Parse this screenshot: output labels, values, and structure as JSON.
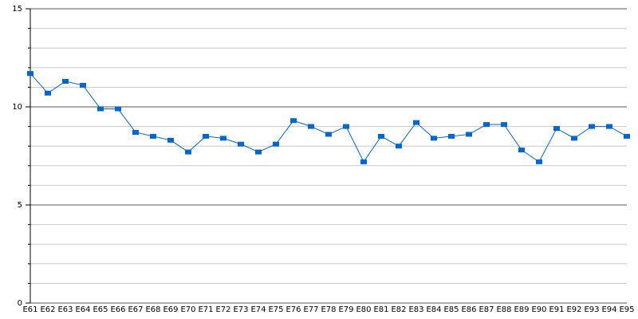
{
  "chart_data": {
    "type": "line",
    "categories": [
      "E61",
      "E62",
      "E63",
      "E64",
      "E65",
      "E66",
      "E67",
      "E68",
      "E69",
      "E70",
      "E71",
      "E72",
      "E73",
      "E74",
      "E75",
      "E76",
      "E77",
      "E78",
      "E79",
      "E80",
      "E81",
      "E82",
      "E83",
      "E84",
      "E85",
      "E86",
      "E87",
      "E88",
      "E89",
      "E90",
      "E91",
      "E92",
      "E93",
      "E94",
      "E95"
    ],
    "series": [
      {
        "color": "#0066cc",
        "values": [
          11.7,
          10.7,
          11.3,
          11.1,
          9.9,
          9.9,
          8.7,
          8.5,
          8.3,
          7.7,
          8.5,
          8.4,
          8.1,
          7.7,
          8.1,
          9.3,
          9.0,
          8.6,
          9.0,
          7.2,
          8.5,
          8.0,
          9.2,
          8.4,
          8.5,
          8.6,
          9.1,
          9.1,
          7.8,
          7.2,
          8.9,
          8.4,
          9.0,
          9.0,
          8.5
        ]
      }
    ],
    "ylim": [
      0,
      15
    ],
    "yticks": [
      0,
      5,
      10,
      15
    ],
    "grid": true,
    "minor_grid": true
  }
}
